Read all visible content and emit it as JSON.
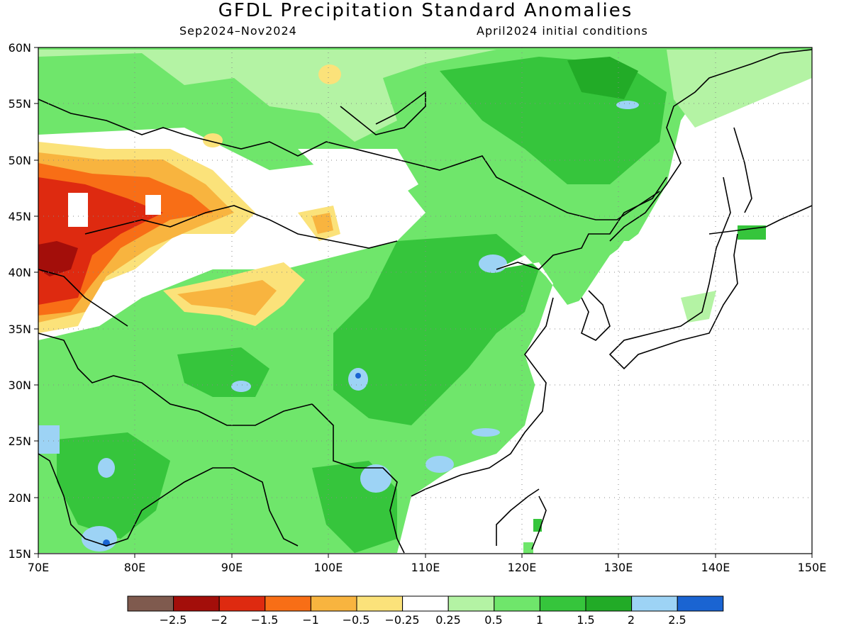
{
  "title": "GFDL Precipitation Standard Anomalies",
  "period": "Sep2024–Nov2024",
  "initial_conditions": "April2024 initial conditions",
  "map": {
    "lon_range": [
      70,
      150
    ],
    "lat_range": [
      15,
      60
    ],
    "lat_labels": [
      "60N",
      "55N",
      "50N",
      "45N",
      "40N",
      "35N",
      "30N",
      "25N",
      "20N",
      "15N"
    ],
    "lon_labels": [
      "70E",
      "80E",
      "90E",
      "100E",
      "110E",
      "120E",
      "130E",
      "140E",
      "150E"
    ],
    "grid": "dotted"
  },
  "colorbar": {
    "colors": [
      "#7f5a4e",
      "#a30e0a",
      "#de2a10",
      "#f86e16",
      "#f8b43f",
      "#fbe27a",
      "#ffffff",
      "#b4f3a4",
      "#6fe66b",
      "#36c53c",
      "#22ab27",
      "#9dd3f5",
      "#1a64d2"
    ],
    "labels": [
      "−2.5",
      "−2",
      "−1.5",
      "−1",
      "−0.5",
      "−0.25",
      "0.25",
      "0.5",
      "1",
      "1.5",
      "2",
      "2.5"
    ]
  }
}
